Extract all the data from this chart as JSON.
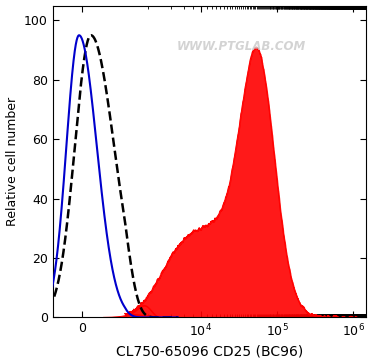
{
  "title": "",
  "xlabel": "CL750-65096 CD25 (BC96)",
  "ylabel": "Relative cell number",
  "watermark": "WWW.PTGLAB.COM",
  "ylim": [
    0,
    105
  ],
  "yticks": [
    0,
    20,
    40,
    60,
    80,
    100
  ],
  "background_color": "#ffffff",
  "curve_dashed_color": "#000000",
  "curve_solid_color": "#0000cc",
  "curve_filled_color": "#ff0000",
  "xlabel_fontsize": 10,
  "ylabel_fontsize": 9,
  "linthresh": 1000,
  "linscale": 0.5
}
